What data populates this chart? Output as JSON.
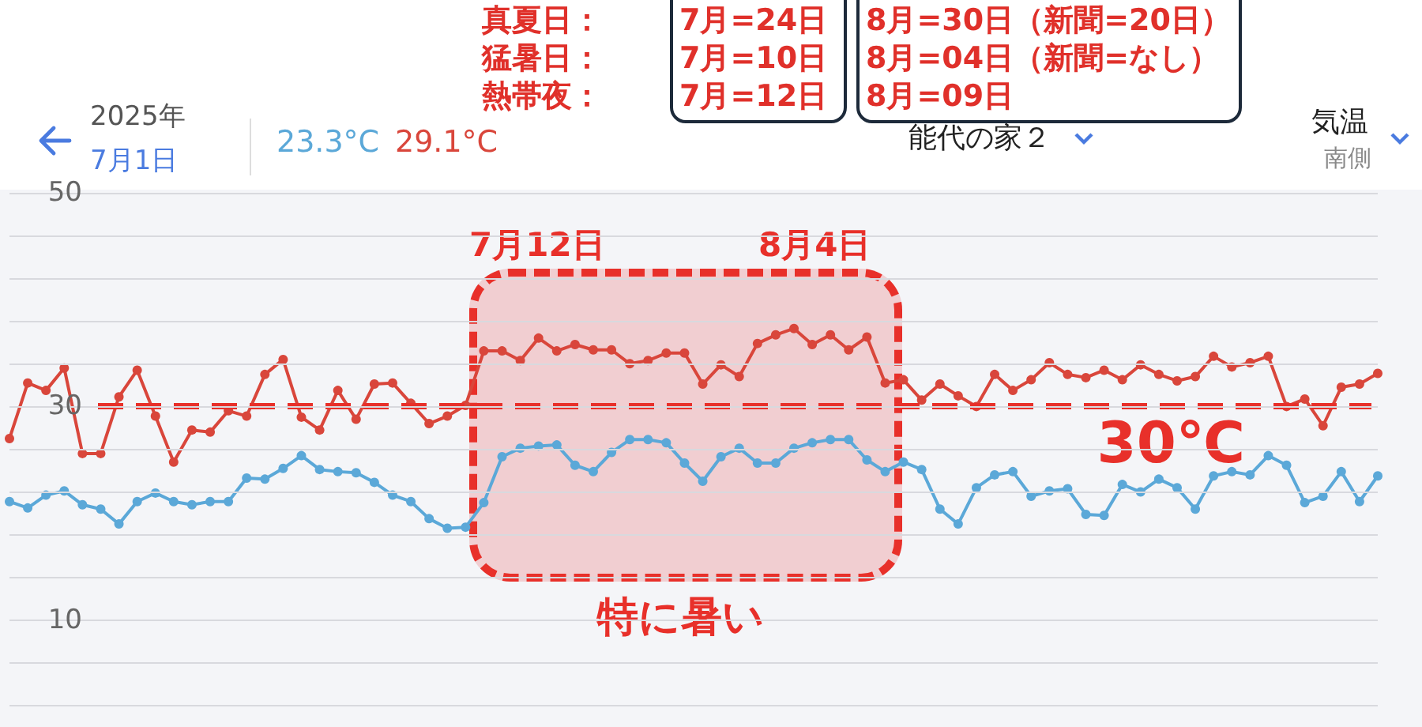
{
  "chart_data": {
    "type": "line",
    "categories": [
      null,
      null,
      null,
      null,
      null,
      null,
      null,
      null,
      null,
      null,
      null,
      null,
      null,
      null,
      null,
      null,
      null,
      null,
      null,
      null,
      null,
      null,
      null,
      null,
      null,
      null,
      null,
      null,
      null,
      null,
      null,
      null,
      null,
      null,
      null,
      null,
      null,
      null,
      null,
      null,
      null,
      null,
      null,
      null,
      null,
      null,
      null,
      null,
      null,
      null,
      null,
      null,
      null,
      null,
      null,
      null,
      null,
      null,
      null,
      null,
      null,
      null,
      null,
      null,
      null,
      null,
      null,
      null,
      null,
      null,
      null,
      null,
      null,
      null,
      null,
      null
    ],
    "series": [
      {
        "color": "#d9463b",
        "values": [
          27.0,
          32.2,
          31.5,
          33.6,
          25.6,
          25.6,
          30.9,
          33.4,
          29.1,
          24.8,
          27.8,
          27.6,
          29.6,
          29.1,
          33.0,
          34.4,
          29.0,
          27.8,
          31.5,
          28.8,
          32.1,
          32.2,
          30.3,
          28.4,
          29.1,
          30.1,
          35.2,
          35.2,
          34.3,
          36.4,
          35.2,
          35.8,
          35.3,
          35.3,
          34.0,
          34.3,
          35.0,
          35.0,
          32.1,
          33.9,
          32.8,
          35.9,
          36.7,
          37.3,
          35.8,
          36.7,
          35.3,
          36.5,
          32.2,
          32.5,
          30.6,
          32.1,
          31.0,
          30.0,
          33.0,
          31.5,
          32.5,
          34.1,
          33.0,
          32.7,
          33.4,
          32.5,
          33.9,
          33.0,
          32.4,
          32.8,
          34.7,
          33.7,
          34.1,
          34.7,
          30.0,
          30.7,
          28.2,
          31.8,
          32.1,
          33.1
        ]
      },
      {
        "color": "#5ba8d8",
        "values": [
          21.1,
          20.5,
          21.7,
          22.1,
          20.8,
          20.4,
          19.0,
          21.1,
          21.9,
          21.1,
          20.8,
          21.1,
          21.1,
          23.3,
          23.2,
          24.2,
          25.4,
          24.1,
          23.9,
          23.8,
          22.9,
          21.7,
          21.1,
          19.5,
          18.6,
          18.7,
          21.0,
          25.3,
          26.1,
          26.3,
          26.4,
          24.5,
          23.9,
          25.7,
          26.9,
          26.9,
          26.6,
          24.7,
          23.0,
          25.3,
          26.1,
          24.7,
          24.7,
          26.1,
          26.6,
          26.9,
          26.9,
          25.0,
          23.9,
          24.8,
          24.1,
          20.4,
          19.0,
          22.4,
          23.6,
          23.9,
          21.6,
          22.1,
          22.3,
          19.9,
          19.8,
          22.7,
          22.0,
          23.2,
          22.4,
          20.4,
          23.5,
          23.9,
          23.6,
          25.4,
          24.5,
          21.0,
          21.6,
          23.9,
          21.1,
          23.5
        ]
      }
    ],
    "ylim": [
      0,
      50
    ],
    "yticks": [
      {
        "value": 2,
        "label": null
      },
      {
        "value": 6,
        "label": null
      },
      10,
      {
        "value": 14,
        "label": null
      },
      {
        "value": 18,
        "label": null
      },
      {
        "value": 22,
        "label": null
      },
      {
        "value": 26,
        "label": null
      },
      30,
      {
        "value": 34,
        "label": null
      },
      {
        "value": 38,
        "label": null
      },
      {
        "value": 42,
        "label": null
      },
      {
        "value": 46,
        "label": null
      },
      50
    ],
    "tick_labels": "y",
    "grid": "y",
    "marker": "circle",
    "line_style": "solid",
    "ref_lines": [
      {
        "axis": "y",
        "value": 30,
        "label": "30℃",
        "color": "#e8302a",
        "line_style": "dashed"
      }
    ],
    "annotations": [
      "真夏日：",
      "猛暑日：",
      "熱帯夜：",
      "7月=24日",
      "7月=10日",
      "7月=12日",
      "8月=30日（新聞=20日）",
      "8月=04日（新聞=なし）",
      "8月=09日",
      "2025年",
      "7月1日",
      "23.3°C",
      "29.1°C",
      "能代の家２",
      "気温",
      "南側",
      "7月12日",
      "8月4日",
      "特に暑い"
    ]
  }
}
